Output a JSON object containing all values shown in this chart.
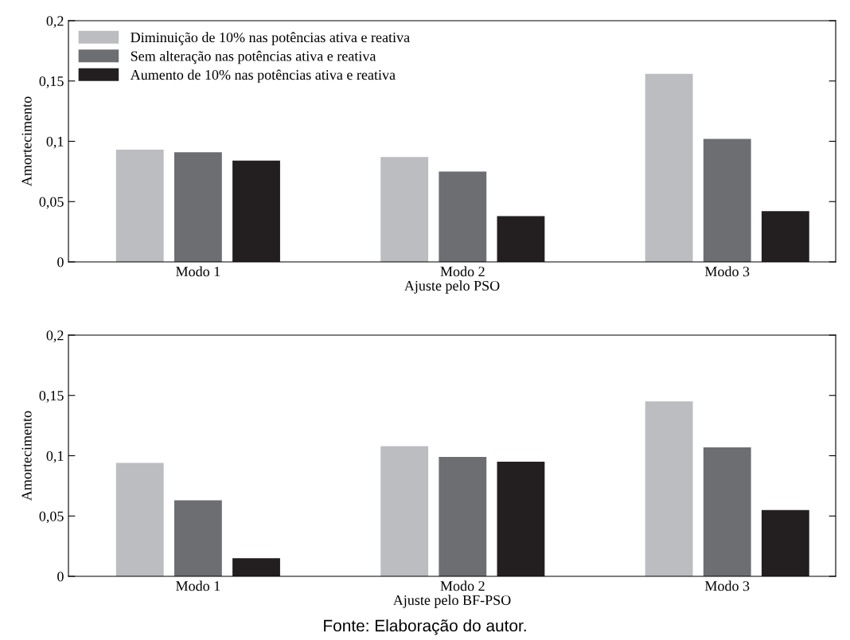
{
  "chart_data": [
    {
      "type": "bar",
      "xlabel": "Ajuste pelo PSO",
      "ylabel": "Amortecimento",
      "categories": [
        "Modo 1",
        "Modo 2",
        "Modo 3"
      ],
      "series": [
        {
          "name": "Diminuição de 10% nas potências ativa e reativa",
          "color": "#bcbdc1",
          "values": [
            0.093,
            0.087,
            0.156
          ]
        },
        {
          "name": "Sem alteração nas potências ativa e reativa",
          "color": "#6d6e71",
          "values": [
            0.091,
            0.075,
            0.102
          ]
        },
        {
          "name": "Aumento de 10% nas potências ativa e reativa",
          "color": "#231f20",
          "values": [
            0.084,
            0.038,
            0.042
          ]
        }
      ],
      "ylim": [
        0,
        0.2
      ],
      "yticks": [
        {
          "value": 0,
          "label": "0"
        },
        {
          "value": 0.05,
          "label": "0,05"
        },
        {
          "value": 0.1,
          "label": "0,1"
        },
        {
          "value": 0.15,
          "label": "0,15"
        },
        {
          "value": 0.2,
          "label": "0,2"
        }
      ],
      "grid": false,
      "legend": "top left"
    },
    {
      "type": "bar",
      "xlabel": "Ajuste pelo BF-PSO",
      "ylabel": "Amortecimento",
      "categories": [
        "Modo 1",
        "Modo 2",
        "Modo 3"
      ],
      "series": [
        {
          "color": "#bcbdc1",
          "values": [
            0.094,
            0.108,
            0.145
          ]
        },
        {
          "color": "#6d6e71",
          "values": [
            0.063,
            0.099,
            0.107
          ]
        },
        {
          "color": "#231f20",
          "values": [
            0.015,
            0.095,
            0.055
          ]
        }
      ],
      "ylim": [
        0,
        0.2
      ],
      "yticks": [
        {
          "value": 0,
          "label": "0"
        },
        {
          "value": 0.05,
          "label": "0,05"
        },
        {
          "value": 0.1,
          "label": "0,1"
        },
        {
          "value": 0.15,
          "label": "0,15"
        },
        {
          "value": 0.2,
          "label": "0,2"
        }
      ],
      "grid": false,
      "annotations": [
        "Fonte: Elaboração do autor."
      ]
    }
  ]
}
